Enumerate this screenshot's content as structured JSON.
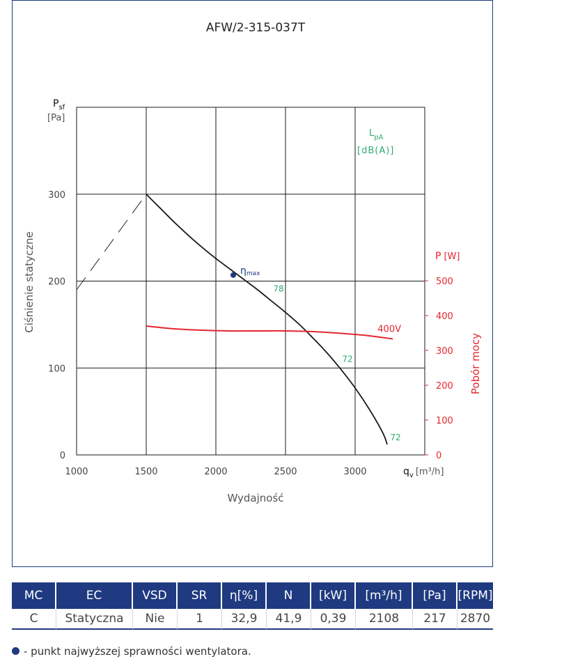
{
  "chart_data": {
    "type": "line",
    "title": "AFW/2-315-037T",
    "xlabel": "Wydajność",
    "x_unit_symbol": "q",
    "x_unit_sub": "v",
    "x_unit": "[m³/h]",
    "ylabel": "Ciśnienie statyczne",
    "y_symbol": "P",
    "y_symbol_sub": "sf",
    "y_unit": "[Pa]",
    "y2label": "Pobór mocy",
    "y2_symbol": "P",
    "y2_unit": "[W]",
    "xlim": [
      1000,
      3500
    ],
    "ylim": [
      0,
      400
    ],
    "y2lim": [
      0,
      500
    ],
    "x_ticks": [
      "1000",
      "1500",
      "2000",
      "2500",
      "3000"
    ],
    "y_ticks": [
      "0",
      "100",
      "200",
      "300"
    ],
    "y2_ticks": [
      "0",
      "100",
      "200",
      "300",
      "400",
      "500"
    ],
    "lpa_label": "L",
    "lpa_sub": "pA",
    "lpa_unit": "[dB(A)]",
    "colors": {
      "pressure": "#1a1a1a",
      "power": "#e3262e",
      "sound": "#2faa6e",
      "eta": "#1f3a80",
      "grid": "#1a1a1a"
    },
    "series": [
      {
        "name": "",
        "color": "#1a1a1a",
        "x": [
          1500,
          1600,
          1700,
          1800,
          1900,
          2000,
          2100,
          2200,
          2300,
          2400,
          2500,
          2600,
          2700,
          2800,
          2900,
          3000,
          3100,
          3200,
          3230
        ],
        "y": [
          300,
          284,
          268,
          253,
          239,
          226,
          214,
          202,
          190,
          177,
          164,
          150,
          134,
          117,
          98,
          77,
          53,
          25,
          12
        ]
      },
      {
        "name": "400V",
        "color": "#e3262e",
        "axis": "y2",
        "x": [
          1500,
          1700,
          1900,
          2100,
          2300,
          2500,
          2700,
          2900,
          3100,
          3270
        ],
        "y": [
          370,
          362,
          358,
          356,
          356,
          356,
          354,
          349,
          342,
          333
        ]
      },
      {
        "name": "",
        "color": "#1a1a1a",
        "style": "dashed",
        "x": [
          1000,
          1500
        ],
        "y": [
          190,
          300
        ]
      }
    ],
    "eta_point": {
      "x": 2125,
      "y": 207,
      "label": "η",
      "label_sub": "max"
    },
    "sound_labels": [
      {
        "text": "78",
        "x": 2450,
        "y": 188
      },
      {
        "text": "72",
        "x": 2945,
        "y": 107
      },
      {
        "text": "72",
        "x": 3290,
        "y": 17
      }
    ]
  },
  "table": {
    "headers": [
      "MC",
      "EC",
      "VSD",
      "SR",
      "η[%]",
      "N",
      "[kW]",
      "[m³/h]",
      "[Pa]",
      "[RPM]"
    ],
    "row": [
      "C",
      "Statyczna",
      "Nie",
      "1",
      "32,9",
      "41,9",
      "0,39",
      "2108",
      "217",
      "2870"
    ]
  },
  "footnote": "- punkt najwyższej sprawności wentylatora."
}
